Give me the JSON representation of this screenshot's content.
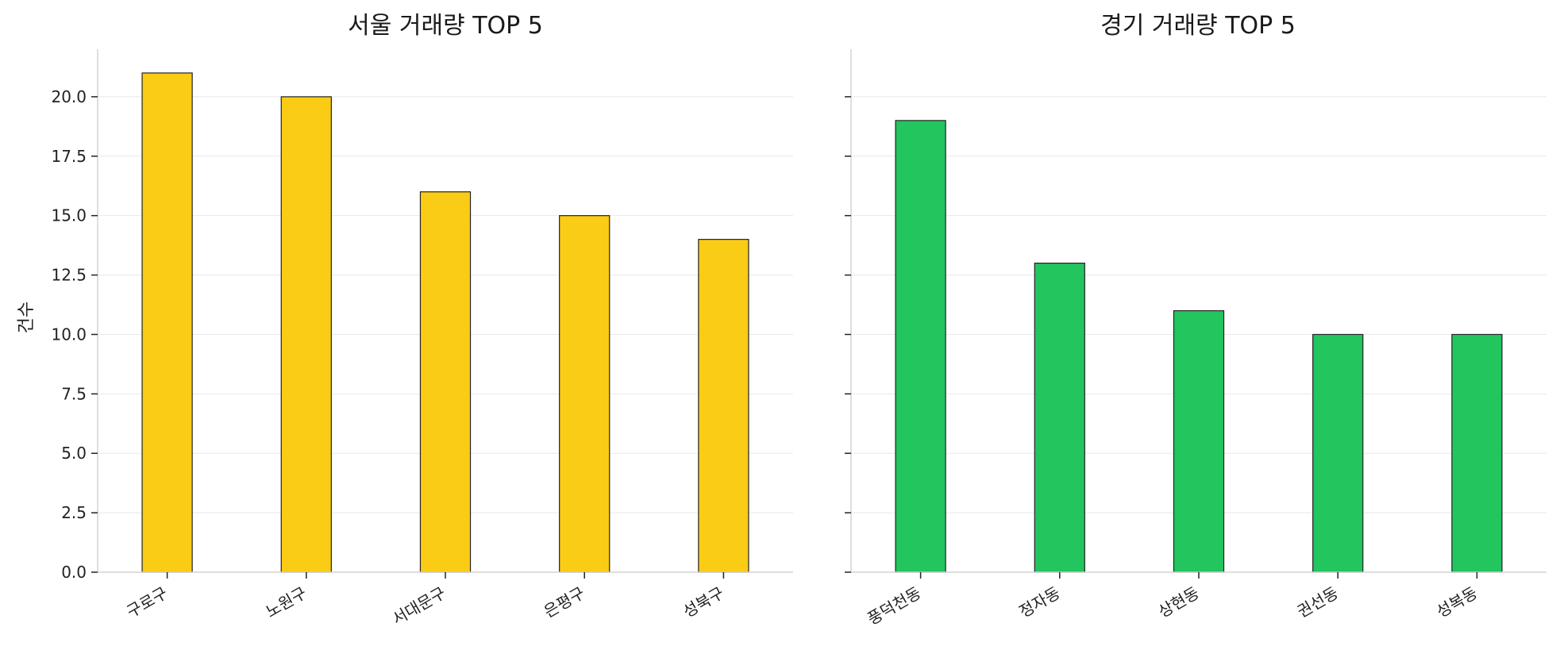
{
  "colors": {
    "seoul_bar": "#facc15",
    "gyeonggi_bar": "#22c55e",
    "bar_edge": "#222222",
    "grid": "#e8e8e8",
    "axis": "#d4d4d4"
  },
  "chart_data": [
    {
      "type": "bar",
      "title": "서울 거래량 TOP 5",
      "ylabel": "건수",
      "xlabel": "",
      "categories": [
        "구로구",
        "노원구",
        "서대문구",
        "은평구",
        "성북구"
      ],
      "values": [
        21,
        20,
        16,
        15,
        14
      ],
      "ylim": [
        0,
        22
      ],
      "yticks": [
        "0.0",
        "2.5",
        "5.0",
        "7.5",
        "10.0",
        "12.5",
        "15.0",
        "17.5",
        "20.0"
      ],
      "grid": true,
      "bar_color": "#facc15"
    },
    {
      "type": "bar",
      "title": "경기 거래량 TOP 5",
      "ylabel": "",
      "xlabel": "",
      "categories": [
        "풍덕천동",
        "정자동",
        "상현동",
        "권선동",
        "성복동"
      ],
      "values": [
        19,
        13,
        11,
        10,
        10
      ],
      "ylim": [
        0,
        22
      ],
      "grid": true,
      "shared_y": true,
      "bar_color": "#22c55e"
    }
  ]
}
